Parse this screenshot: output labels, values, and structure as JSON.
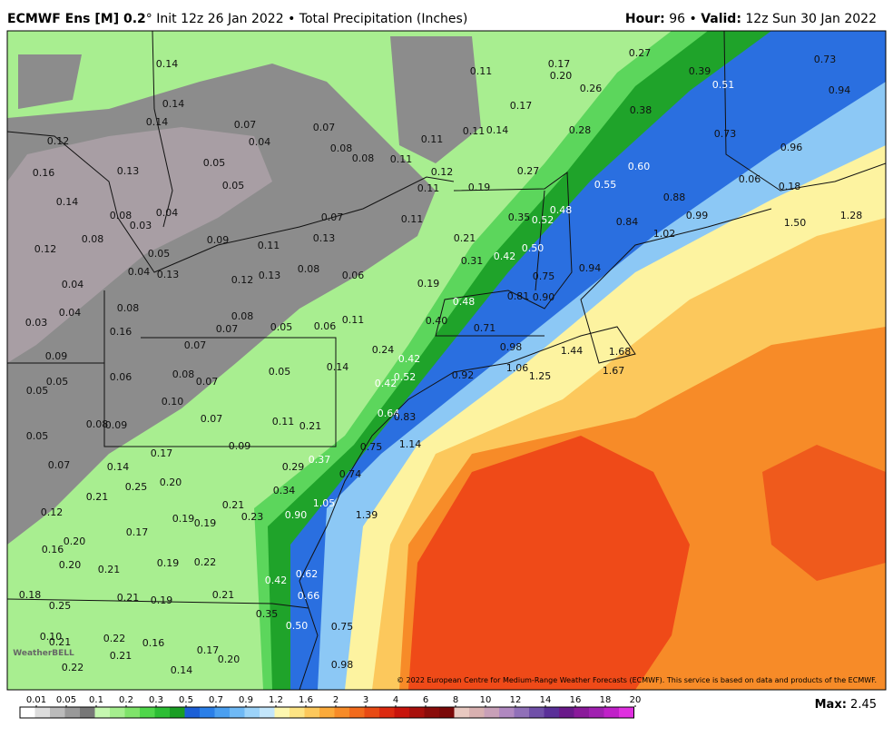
{
  "header": {
    "model": "ECMWF Ens [M] 0.2",
    "degree": "°",
    "init": "Init 12z 26 Jan 2022",
    "separator": "•",
    "product": "Total Precipitation (Inches)",
    "hour_label": "Hour:",
    "hour": "96",
    "valid_label": "Valid:",
    "valid": "12z Sun 30 Jan 2022"
  },
  "map": {
    "labels": [
      "0.14",
      "0.14",
      "0.14",
      "0.07",
      "0.07",
      "0.04",
      "0.08",
      "0.08",
      "0.11",
      "0.12",
      "0.16",
      "0.13",
      "0.05",
      "0.05",
      "0.14",
      "0.03",
      "0.04",
      "0.08",
      "0.08",
      "0.09",
      "0.11",
      "0.13",
      "0.07",
      "0.12",
      "0.05",
      "0.04",
      "0.13",
      "0.12",
      "0.13",
      "0.08",
      "0.06",
      "0.04",
      "0.04",
      "0.03",
      "0.08",
      "0.16",
      "0.07",
      "0.08",
      "0.05",
      "0.06",
      "0.11",
      "0.07",
      "0.09",
      "0.06",
      "0.08",
      "0.07",
      "0.05",
      "0.14",
      "0.05",
      "0.05",
      "0.10",
      "0.08",
      "0.09",
      "0.07",
      "0.11",
      "0.21",
      "0.05",
      "0.17",
      "0.09",
      "0.07",
      "0.14",
      "0.21",
      "0.25",
      "0.20",
      "0.21",
      "0.12",
      "0.19",
      "0.19",
      "0.23",
      "0.17",
      "0.20",
      "0.16",
      "0.20",
      "0.21",
      "0.19",
      "0.22",
      "0.18",
      "0.25",
      "0.21",
      "0.19",
      "0.21",
      "0.35",
      "0.10",
      "0.21",
      "0.22",
      "0.16",
      "0.17",
      "0.20",
      "0.21",
      "0.14",
      "0.22",
      "0.11",
      "0.17",
      "0.20",
      "0.26",
      "0.27",
      "0.39",
      "0.51",
      "0.73",
      "0.94",
      "0.17",
      "0.11",
      "0.14",
      "0.11",
      "0.28",
      "0.38",
      "0.73",
      "0.96",
      "0.12",
      "0.27",
      "0.60",
      "0.11",
      "0.19",
      "0.55",
      "0.06",
      "0.18",
      "0.88",
      "0.11",
      "0.35",
      "0.52",
      "0.48",
      "0.84",
      "0.99",
      "1.50",
      "1.28",
      "0.21",
      "0.42",
      "0.50",
      "1.02",
      "0.31",
      "0.75",
      "0.94",
      "0.19",
      "0.48",
      "0.81",
      "0.90",
      "0.40",
      "0.71",
      "0.24",
      "0.42",
      "0.98",
      "1.44",
      "1.68",
      "0.52",
      "0.92",
      "1.06",
      "1.25",
      "1.67",
      "0.42",
      "0.64",
      "0.83",
      "1.14",
      "0.75",
      "0.29",
      "0.37",
      "0.74",
      "0.34",
      "1.05",
      "0.90",
      "1.39",
      "0.42",
      "0.62",
      "0.66",
      "0.50",
      "0.75",
      "0.98"
    ],
    "credit": "© 2022 European Centre for Medium-Range Weather Forecasts (ECMWF). This service is based on data and products of the ECMWF.",
    "logo": "WeatherBELL"
  },
  "colorbar": {
    "ticks": [
      "0.01",
      "0.05",
      "0.1",
      "0.2",
      "0.3",
      "0.5",
      "0.7",
      "0.9",
      "1.2",
      "1.6",
      "2",
      "3",
      "4",
      "6",
      "8",
      "10",
      "12",
      "14",
      "16",
      "18",
      "20"
    ],
    "colors": [
      "#ffffff",
      "#dddddd",
      "#bbbbbb",
      "#999999",
      "#777777",
      "#c5f7b0",
      "#a5ee8e",
      "#7fe36a",
      "#4fd64a",
      "#2cbe34",
      "#1a9e24",
      "#1c5fd6",
      "#2a7fe8",
      "#4a9ff0",
      "#6fb9f5",
      "#9cd3f9",
      "#c3e6fb",
      "#fdf7b0",
      "#fde484",
      "#fcc85c",
      "#fbaa3a",
      "#f78b28",
      "#f26a1c",
      "#e84a14",
      "#dc2a10",
      "#c8140c",
      "#a8100c",
      "#8a0c0a",
      "#7a0808",
      "#e8c8c0",
      "#d8b0b0",
      "#c8a0b8",
      "#b088c0",
      "#9070b8",
      "#7050a8",
      "#5a3098",
      "#6a1a8a",
      "#8a1a9a",
      "#a020b0",
      "#c020c8",
      "#e030e0"
    ]
  },
  "footer": {
    "max_label": "Max:",
    "max": "2.45"
  }
}
